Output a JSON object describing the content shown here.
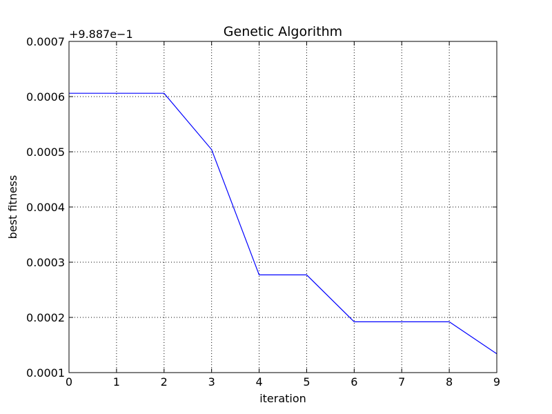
{
  "chart_data": {
    "type": "line",
    "title": "Genetic Algorithm",
    "xlabel": "iteration",
    "ylabel": "best fitness",
    "y_offset_label": "+9.887e−1",
    "xlim": [
      0,
      9
    ],
    "ylim": [
      0.0001,
      0.0007
    ],
    "x_ticks": [
      0,
      1,
      2,
      3,
      4,
      5,
      6,
      7,
      8,
      9
    ],
    "x_tick_labels": [
      "0",
      "1",
      "2",
      "3",
      "4",
      "5",
      "6",
      "7",
      "8",
      "9"
    ],
    "y_ticks": [
      0.0001,
      0.0002,
      0.0003,
      0.0004,
      0.0005,
      0.0006,
      0.0007
    ],
    "y_tick_labels": [
      "0.0001",
      "0.0002",
      "0.0003",
      "0.0004",
      "0.0005",
      "0.0006",
      "0.0007"
    ],
    "grid": true,
    "series": [
      {
        "name": "best fitness",
        "color": "#0000ff",
        "x": [
          0,
          1,
          2,
          3,
          4,
          5,
          6,
          7,
          8,
          9
        ],
        "values": [
          0.000606,
          0.000606,
          0.000606,
          0.000504,
          0.000277,
          0.000277,
          0.000192,
          0.000192,
          0.000192,
          0.000134
        ]
      }
    ]
  }
}
